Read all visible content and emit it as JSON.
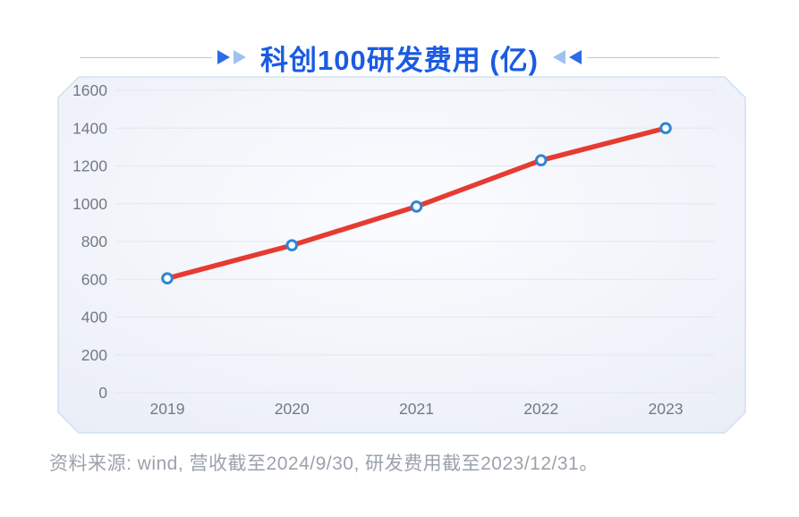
{
  "title": {
    "text": "科创100研发费用 (亿)"
  },
  "footer": {
    "source_text": "资料来源: wind, 营收截至2024/9/30, 研发费用截至2023/12/31。"
  },
  "icons": {
    "left_flourish": "double-right-triangles",
    "right_flourish": "double-left-triangles"
  },
  "colors": {
    "title_blue": "#1b5be2",
    "arrow_dark": "#2e6be6",
    "arrow_light": "#9fc1f2",
    "title_line": "#b4c9ee",
    "line_red": "#e63b31",
    "marker_blue": "#2e85d5",
    "grid": "#e3e6ec",
    "axis_label": "#737a84",
    "card_fill_center": "#fbfcff",
    "card_fill_edge": "#e9edf6",
    "card_border": "#cadded",
    "footer_gray": "#9ba2ab"
  },
  "chart_data": {
    "type": "line",
    "title": "科创100研发费用 (亿)",
    "categories": [
      "2019",
      "2020",
      "2021",
      "2022",
      "2023"
    ],
    "values": [
      605,
      780,
      985,
      1230,
      1400
    ],
    "series_name": "研发费用",
    "xlabel": "",
    "ylabel": "",
    "ylim": [
      0,
      1600
    ],
    "yticks": [
      0,
      200,
      400,
      600,
      800,
      1000,
      1200,
      1400,
      1600
    ],
    "grid": true,
    "legend": false,
    "marker": "open-circle"
  }
}
